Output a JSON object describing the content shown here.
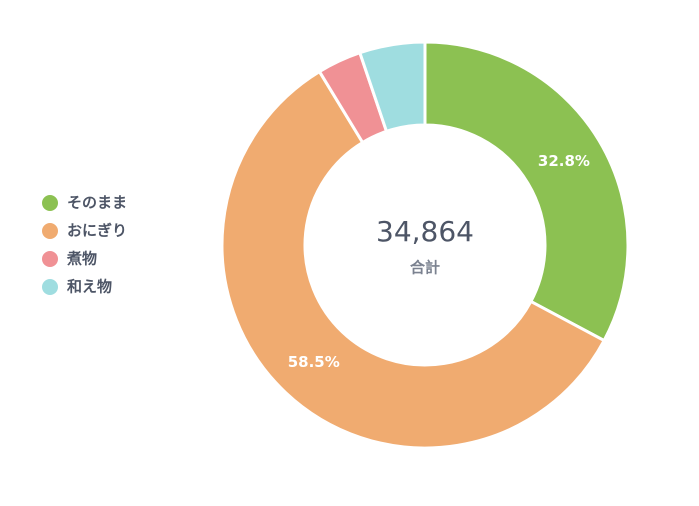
{
  "chart_data": {
    "type": "donut",
    "categories": [
      "そのまま",
      "おにぎり",
      "煮物",
      "和え物"
    ],
    "values": [
      32.8,
      58.5,
      3.5,
      5.2
    ],
    "value_labels": [
      "32.8%",
      "58.5%",
      null,
      null
    ],
    "colors": [
      "#8cc152",
      "#f0ab70",
      "#f09195",
      "#9fdde0"
    ],
    "center_text": "34,864",
    "center_subtext": "合計",
    "legend": "left"
  }
}
